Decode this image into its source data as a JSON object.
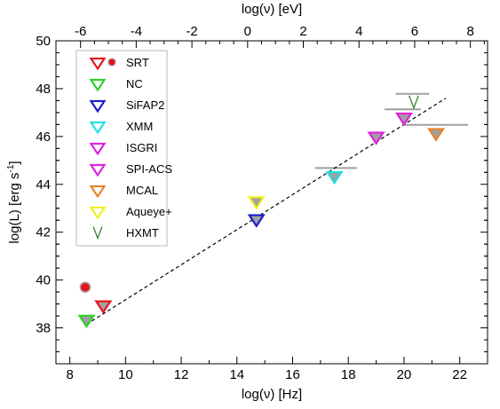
{
  "chart_data": {
    "type": "scatter",
    "xlabel": "log(ν) [Hz]",
    "x2label": "log(ν) [eV]",
    "ylabel_main": "log(L) [erg s",
    "ylabel_sup": "-1",
    "ylabel_end": "]",
    "xlim": [
      7.5,
      23
    ],
    "ylim": [
      36.5,
      50
    ],
    "xticks": [
      8,
      10,
      12,
      14,
      16,
      18,
      20,
      22
    ],
    "yticks": [
      38,
      40,
      42,
      44,
      46,
      48,
      50
    ],
    "x2ticks": [
      -6,
      -4,
      -2,
      0,
      2,
      4,
      6,
      8
    ],
    "x2_offset_hz": 14.383,
    "grid": false,
    "legend_position": "top-left",
    "legend": [
      {
        "label": "SRT",
        "marker": "triangle-down",
        "color": "#e8141b",
        "filled": false
      },
      {
        "label": "NC",
        "marker": "triangle-down",
        "color": "#2ad22a",
        "filled": false
      },
      {
        "label": "SiFAP2",
        "marker": "triangle-down",
        "color": "#1a1ad0",
        "filled": false
      },
      {
        "label": "XMM",
        "marker": "triangle-down",
        "color": "#20e0e0",
        "filled": false
      },
      {
        "label": "ISGRI",
        "marker": "triangle-down",
        "color": "#e020e0",
        "filled": false
      },
      {
        "label": "SPI-ACS",
        "marker": "triangle-down",
        "color": "#e020e0",
        "filled": false
      },
      {
        "label": "MCAL",
        "marker": "triangle-down",
        "color": "#e8852a",
        "filled": false
      },
      {
        "label": "Aqueye+",
        "marker": "triangle-down",
        "color": "#f0f020",
        "filled": false
      },
      {
        "label": "HXMT",
        "marker": "thin-v",
        "color": "#2a7a2a",
        "filled": false
      }
    ],
    "fill_color": "#a0a0a0",
    "points": [
      {
        "instrument": "SRT-circle",
        "x": 8.55,
        "y": 39.7,
        "marker": "circle",
        "color": "#e8141b"
      },
      {
        "instrument": "SRT",
        "x": 9.2,
        "y": 38.95,
        "marker": "triangle-down",
        "color": "#e8141b"
      },
      {
        "instrument": "NC",
        "x": 8.6,
        "y": 38.35,
        "marker": "triangle-down",
        "color": "#2ad22a"
      },
      {
        "instrument": "SiFAP2",
        "x": 14.7,
        "y": 42.55,
        "marker": "triangle-down",
        "color": "#1a1ad0"
      },
      {
        "instrument": "Aqueye+",
        "x": 14.7,
        "y": 43.3,
        "marker": "triangle-down",
        "color": "#f0f020"
      },
      {
        "instrument": "XMM",
        "x": 17.5,
        "y": 44.35,
        "marker": "triangle-down",
        "color": "#20e0e0",
        "xerr": [
          16.8,
          18.3
        ]
      },
      {
        "instrument": "ISGRI",
        "x": 19.0,
        "y": 46.0,
        "marker": "triangle-down",
        "color": "#e020e0"
      },
      {
        "instrument": "SPI-ACS",
        "x": 20.0,
        "y": 46.8,
        "marker": "triangle-down",
        "color": "#e020e0",
        "xerr": [
          19.3,
          20.6
        ]
      },
      {
        "instrument": "HXMT",
        "x": 20.35,
        "y": 47.45,
        "marker": "thin-v",
        "color": "#2a7a2a",
        "xerr": [
          19.7,
          20.9
        ]
      },
      {
        "instrument": "MCAL",
        "x": 21.15,
        "y": 46.15,
        "marker": "triangle-down",
        "color": "#e8852a",
        "xerr": [
          20.0,
          22.3
        ]
      }
    ],
    "fit_line": {
      "style": "dashed",
      "x": [
        8.6,
        21.5
      ],
      "y": [
        38.15,
        47.6
      ]
    }
  }
}
